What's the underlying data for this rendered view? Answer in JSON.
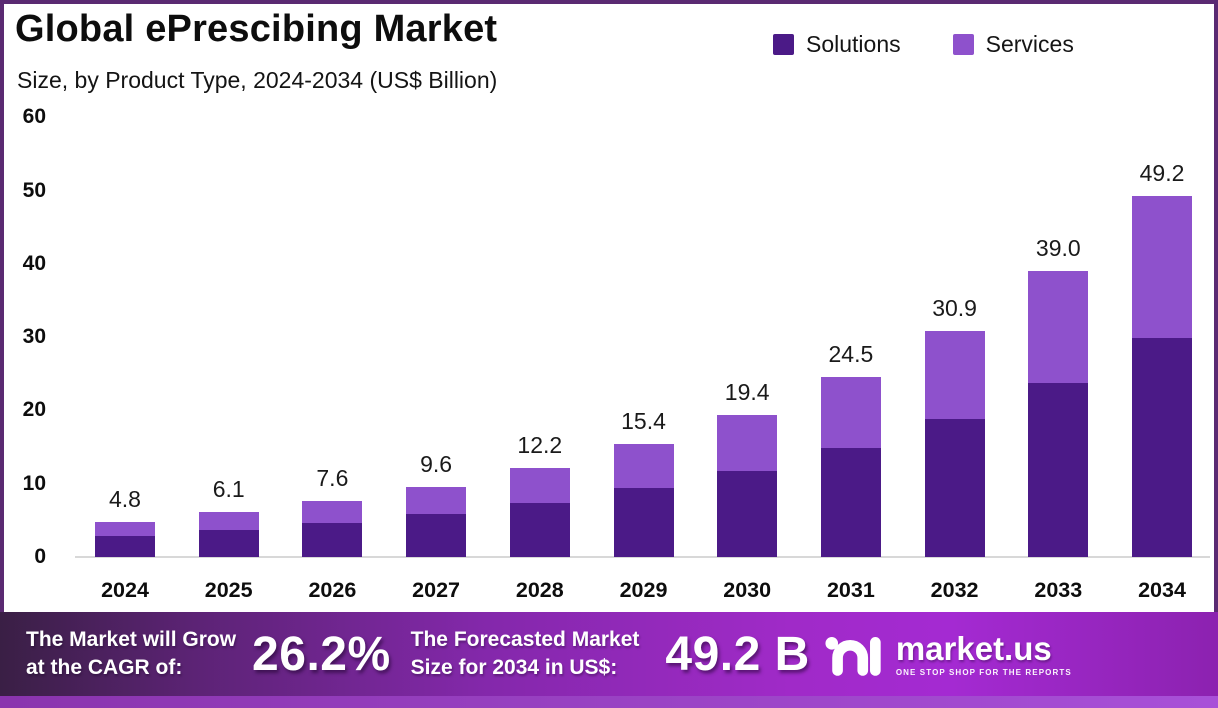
{
  "header": {
    "title": "Global ePrescibing Market",
    "subtitle": "Size, by Product Type, 2024-2034 (US$ Billion)"
  },
  "legend": [
    {
      "label": "Solutions",
      "color": "#4b1a87"
    },
    {
      "label": "Services",
      "color": "#8e51cc"
    }
  ],
  "chart_data": {
    "type": "bar",
    "stacked": true,
    "title": "Global ePrescibing Market",
    "subtitle": "Size, by Product Type, 2024-2034 (US$ Billion)",
    "unit": "US$ Billion",
    "categories": [
      "2024",
      "2025",
      "2026",
      "2027",
      "2028",
      "2029",
      "2030",
      "2031",
      "2032",
      "2033",
      "2034"
    ],
    "series": [
      {
        "name": "Solutions",
        "color": "#4b1a87",
        "values": [
          2.9,
          3.7,
          4.6,
          5.8,
          7.4,
          9.4,
          11.8,
          14.9,
          18.8,
          23.7,
          29.9
        ]
      },
      {
        "name": "Services",
        "color": "#8e51cc",
        "values": [
          1.9,
          2.4,
          3.0,
          3.8,
          4.8,
          6.0,
          7.6,
          9.6,
          12.1,
          15.3,
          19.3
        ]
      }
    ],
    "totals": [
      4.8,
      6.1,
      7.6,
      9.6,
      12.2,
      15.4,
      19.4,
      24.5,
      30.9,
      39.0,
      49.2
    ],
    "total_labels": [
      "4.8",
      "6.1",
      "7.6",
      "9.6",
      "12.2",
      "15.4",
      "19.4",
      "24.5",
      "30.9",
      "39.0",
      "49.2"
    ],
    "yticks": [
      0,
      10,
      20,
      30,
      40,
      50,
      60
    ],
    "ylim": [
      0,
      60
    ],
    "grid": false,
    "legend_position": "top-right"
  },
  "banner": {
    "cagr_label_line1": "The Market will Grow",
    "cagr_label_line2": "at the CAGR of:",
    "cagr_value": "26.2%",
    "forecast_label_line1": "The Forecasted Market",
    "forecast_label_line2": "Size for 2034 in US$:",
    "forecast_value": "49.2 B",
    "brand": "market.us",
    "brand_tagline": "ONE STOP SHOP FOR THE REPORTS"
  },
  "colors": {
    "solutions": "#4b1a87",
    "services": "#8e51cc",
    "frame_border": "#5a2a72",
    "axis_line": "#d8d8d8",
    "banner_left": "#3a1f45",
    "banner_bright": "#a42ad2",
    "strip": "#a850d8",
    "text": "#0d0d0d"
  }
}
